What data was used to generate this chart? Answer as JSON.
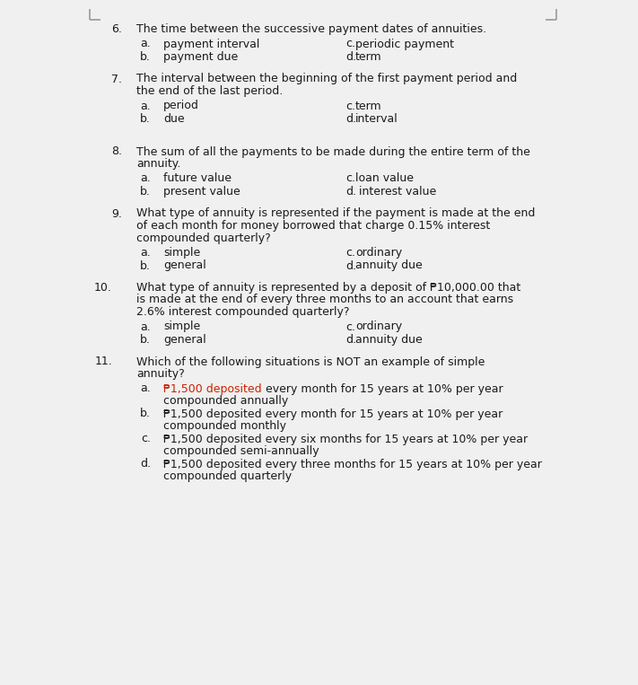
{
  "bg_color": "#f0f0f0",
  "text_color": "#1a1a1a",
  "red_color": "#cc2200",
  "font_size": 9.0,
  "figsize": [
    7.11,
    7.63
  ],
  "dpi": 100,
  "corner_color": "#999999",
  "q6": {
    "num": "6.",
    "q_line1": "The time between the successive payment dates of annuities.",
    "opts": [
      [
        "a.",
        "payment interval",
        "c.",
        "periodic payment"
      ],
      [
        "b.",
        "payment due",
        "d.",
        "term"
      ]
    ]
  },
  "q7": {
    "num": "7.",
    "q_line1": "The interval between the beginning of the first payment period and",
    "q_line2": "the end of the last period.",
    "opts": [
      [
        "a.",
        "period",
        "c.",
        "term"
      ],
      [
        "b.",
        "due",
        "d.",
        "interval"
      ]
    ]
  },
  "q8": {
    "num": "8.",
    "q_line1": "The sum of all the payments to be made during the entire term of the",
    "q_line2": "annuity.",
    "opts": [
      [
        "a.",
        "future value",
        "c.",
        "loan value"
      ],
      [
        "b.",
        "present value",
        "d.",
        " interest value"
      ]
    ]
  },
  "q9": {
    "num": "9.",
    "q_line1": "What type of annuity is represented if the payment is made at the end",
    "q_line2": "of each month for money borrowed that charge 0.15% interest",
    "q_line3": "compounded quarterly?",
    "opts": [
      [
        "a.",
        "simple",
        "c.",
        "ordinary"
      ],
      [
        "b.",
        "general",
        "d.",
        "annuity due"
      ]
    ]
  },
  "q10": {
    "num": "10.",
    "q_line1": "What type of annuity is represented by a deposit of ₱10,000.00 that",
    "q_line2": "is made at the end of every three months to an account that earns",
    "q_line3": "2.6% interest compounded quarterly?",
    "opts": [
      [
        "a.",
        "simple",
        "c.",
        "ordinary"
      ],
      [
        "b.",
        "general",
        "d.",
        "annuity due"
      ]
    ]
  },
  "q11": {
    "num": "11.",
    "q_line1": "Which of the following situations is NOT an example of simple",
    "q_line2": "annuity?",
    "sub_opts": [
      {
        "label": "a.",
        "red_part": "₱1,500 deposited",
        "black_part": " every month for 15 years at 10% per year",
        "cont": "compounded annually"
      },
      {
        "label": "b.",
        "red_part": "",
        "black_part": "₱1,500 deposited every month for 15 years at 10% per year",
        "cont": "compounded monthly"
      },
      {
        "label": "c.",
        "red_part": "",
        "black_part": "₱1,500 deposited every six months for 15 years at 10% per year",
        "cont": "compounded semi-annually"
      },
      {
        "label": "d.",
        "red_part": "",
        "black_part": "₱1,500 deposited every three months for 15 years at 10% per year",
        "cont": "compounded quarterly"
      }
    ]
  }
}
